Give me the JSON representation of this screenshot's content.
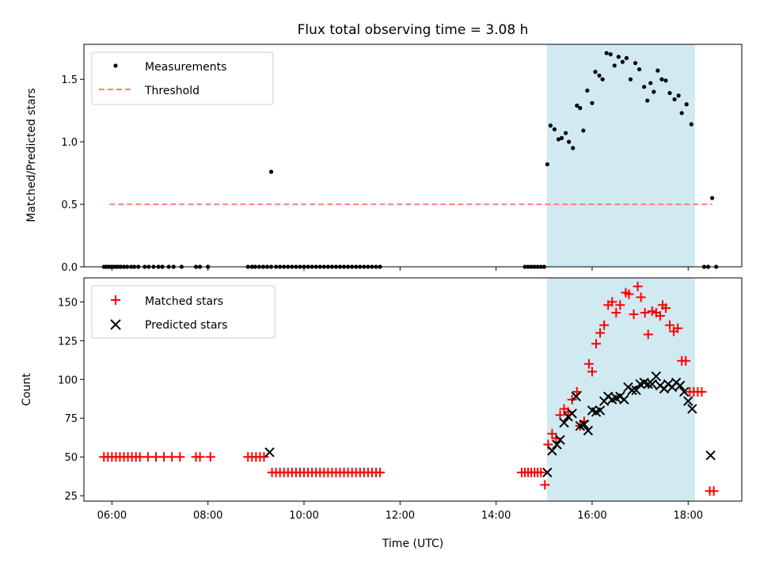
{
  "colors": {
    "measurements": "#000000",
    "threshold": "#ff7f7f",
    "matched": "#ff0000",
    "predicted": "#000000",
    "highlight": "#add8e6"
  },
  "chart_data": [
    {
      "type": "scatter",
      "title": "Flux total observing time = 3.08 h",
      "xlabel": "",
      "ylabel": "Matched/Predicted stars",
      "xlim": [
        "05:25",
        "19:07"
      ],
      "ylim": [
        0,
        1.78
      ],
      "yticks": [
        "0.0",
        "0.5",
        "1.0",
        "1.5"
      ],
      "highlight_span": [
        "15:04",
        "18:08"
      ],
      "legend": {
        "position": "upper-left",
        "entries": [
          "Measurements",
          "Threshold"
        ]
      },
      "threshold": {
        "name": "Threshold",
        "value": 0.5,
        "x_from": "05:57",
        "x_to": "18:30"
      },
      "series": [
        {
          "name": "Measurements",
          "points": [
            [
              "05:50",
              0
            ],
            [
              "05:53",
              0
            ],
            [
              "05:56",
              0
            ],
            [
              "05:59",
              0
            ],
            [
              "06:02",
              0
            ],
            [
              "06:05",
              0
            ],
            [
              "06:08",
              0
            ],
            [
              "06:11",
              0
            ],
            [
              "06:15",
              0
            ],
            [
              "06:19",
              0
            ],
            [
              "06:24",
              0
            ],
            [
              "06:28",
              0
            ],
            [
              "06:33",
              0
            ],
            [
              "06:41",
              0
            ],
            [
              "06:46",
              0
            ],
            [
              "06:52",
              0
            ],
            [
              "06:58",
              0
            ],
            [
              "07:03",
              0
            ],
            [
              "07:11",
              0
            ],
            [
              "07:17",
              0
            ],
            [
              "07:27",
              0
            ],
            [
              "07:45",
              0
            ],
            [
              "07:50",
              0
            ],
            [
              "08:00",
              0
            ],
            [
              "08:50",
              0
            ],
            [
              "08:55",
              0
            ],
            [
              "08:59",
              0
            ],
            [
              "09:04",
              0
            ],
            [
              "09:09",
              0
            ],
            [
              "09:14",
              0
            ],
            [
              "09:19",
              0
            ],
            [
              "09:19",
              0.76
            ],
            [
              "09:25",
              0
            ],
            [
              "09:30",
              0
            ],
            [
              "09:35",
              0
            ],
            [
              "09:40",
              0
            ],
            [
              "09:45",
              0
            ],
            [
              "09:50",
              0
            ],
            [
              "09:55",
              0
            ],
            [
              "10:00",
              0
            ],
            [
              "10:05",
              0
            ],
            [
              "10:10",
              0
            ],
            [
              "10:15",
              0
            ],
            [
              "10:20",
              0
            ],
            [
              "10:25",
              0
            ],
            [
              "10:30",
              0
            ],
            [
              "10:35",
              0
            ],
            [
              "10:40",
              0
            ],
            [
              "10:45",
              0
            ],
            [
              "10:50",
              0
            ],
            [
              "10:55",
              0
            ],
            [
              "11:00",
              0
            ],
            [
              "11:05",
              0
            ],
            [
              "11:10",
              0
            ],
            [
              "11:15",
              0
            ],
            [
              "11:20",
              0
            ],
            [
              "11:25",
              0
            ],
            [
              "11:30",
              0
            ],
            [
              "11:35",
              0
            ],
            [
              "14:36",
              0
            ],
            [
              "14:40",
              0
            ],
            [
              "14:44",
              0
            ],
            [
              "14:48",
              0
            ],
            [
              "14:52",
              0
            ],
            [
              "14:56",
              0
            ],
            [
              "15:00",
              0
            ],
            [
              "15:04",
              0.82
            ],
            [
              "15:08",
              1.13
            ],
            [
              "15:13",
              1.1
            ],
            [
              "15:18",
              1.02
            ],
            [
              "15:22",
              1.03
            ],
            [
              "15:27",
              1.07
            ],
            [
              "15:31",
              1.0
            ],
            [
              "15:36",
              0.95
            ],
            [
              "15:41",
              1.29
            ],
            [
              "15:45",
              1.27
            ],
            [
              "15:49",
              1.09
            ],
            [
              "15:54",
              1.41
            ],
            [
              "16:00",
              1.31
            ],
            [
              "16:04",
              1.56
            ],
            [
              "16:09",
              1.53
            ],
            [
              "16:13",
              1.5
            ],
            [
              "16:18",
              1.71
            ],
            [
              "16:23",
              1.7
            ],
            [
              "16:28",
              1.61
            ],
            [
              "16:33",
              1.68
            ],
            [
              "16:38",
              1.64
            ],
            [
              "16:43",
              1.67
            ],
            [
              "16:48",
              1.5
            ],
            [
              "16:54",
              1.63
            ],
            [
              "16:59",
              1.58
            ],
            [
              "17:05",
              1.44
            ],
            [
              "17:09",
              1.33
            ],
            [
              "17:13",
              1.47
            ],
            [
              "17:17",
              1.4
            ],
            [
              "17:22",
              1.57
            ],
            [
              "17:27",
              1.5
            ],
            [
              "17:32",
              1.49
            ],
            [
              "17:37",
              1.39
            ],
            [
              "17:43",
              1.34
            ],
            [
              "17:48",
              1.37
            ],
            [
              "17:52",
              1.23
            ],
            [
              "17:58",
              1.3
            ],
            [
              "18:04",
              1.14
            ],
            [
              "18:20",
              0
            ],
            [
              "18:25",
              0
            ],
            [
              "18:30",
              0.55
            ],
            [
              "18:35",
              0
            ]
          ]
        }
      ]
    },
    {
      "type": "scatter",
      "title": "",
      "xlabel": "Time (UTC)",
      "ylabel": "Count",
      "xlim": [
        "05:25",
        "19:07"
      ],
      "ylim": [
        21.5,
        165.5
      ],
      "xticks": [
        "06:00",
        "08:00",
        "10:00",
        "12:00",
        "14:00",
        "16:00",
        "18:00"
      ],
      "yticks": [
        "25",
        "50",
        "75",
        "100",
        "125",
        "150"
      ],
      "highlight_span": [
        "15:04",
        "18:08"
      ],
      "legend": {
        "position": "upper-left",
        "entries": [
          "Matched stars",
          "Predicted stars"
        ]
      },
      "series": [
        {
          "name": "Matched stars",
          "points": [
            [
              "05:50",
              50
            ],
            [
              "05:55",
              50
            ],
            [
              "06:00",
              50
            ],
            [
              "06:05",
              50
            ],
            [
              "06:10",
              50
            ],
            [
              "06:15",
              50
            ],
            [
              "06:20",
              50
            ],
            [
              "06:25",
              50
            ],
            [
              "06:30",
              50
            ],
            [
              "06:35",
              50
            ],
            [
              "06:45",
              50
            ],
            [
              "06:55",
              50
            ],
            [
              "07:05",
              50
            ],
            [
              "07:15",
              50
            ],
            [
              "07:25",
              50
            ],
            [
              "07:45",
              50
            ],
            [
              "07:50",
              50
            ],
            [
              "08:03",
              50
            ],
            [
              "08:50",
              50
            ],
            [
              "08:55",
              50
            ],
            [
              "09:00",
              50
            ],
            [
              "09:05",
              50
            ],
            [
              "09:10",
              50
            ],
            [
              "09:20",
              40
            ],
            [
              "09:25",
              40
            ],
            [
              "09:30",
              40
            ],
            [
              "09:35",
              40
            ],
            [
              "09:40",
              40
            ],
            [
              "09:45",
              40
            ],
            [
              "09:50",
              40
            ],
            [
              "09:55",
              40
            ],
            [
              "10:00",
              40
            ],
            [
              "10:05",
              40
            ],
            [
              "10:10",
              40
            ],
            [
              "10:15",
              40
            ],
            [
              "10:20",
              40
            ],
            [
              "10:25",
              40
            ],
            [
              "10:30",
              40
            ],
            [
              "10:35",
              40
            ],
            [
              "10:40",
              40
            ],
            [
              "10:45",
              40
            ],
            [
              "10:50",
              40
            ],
            [
              "10:55",
              40
            ],
            [
              "11:00",
              40
            ],
            [
              "11:05",
              40
            ],
            [
              "11:10",
              40
            ],
            [
              "11:15",
              40
            ],
            [
              "11:20",
              40
            ],
            [
              "11:25",
              40
            ],
            [
              "11:30",
              40
            ],
            [
              "11:35",
              40
            ],
            [
              "14:32",
              40
            ],
            [
              "14:36",
              40
            ],
            [
              "14:40",
              40
            ],
            [
              "14:44",
              40
            ],
            [
              "14:48",
              40
            ],
            [
              "14:52",
              40
            ],
            [
              "14:56",
              40
            ],
            [
              "15:01",
              32
            ],
            [
              "15:05",
              58
            ],
            [
              "15:10",
              65
            ],
            [
              "15:15",
              62
            ],
            [
              "15:20",
              77
            ],
            [
              "15:25",
              81
            ],
            [
              "15:30",
              79
            ],
            [
              "15:35",
              87
            ],
            [
              "15:41",
              92
            ],
            [
              "15:45",
              70
            ],
            [
              "15:50",
              73
            ],
            [
              "15:56",
              110
            ],
            [
              "16:00",
              105
            ],
            [
              "16:05",
              123
            ],
            [
              "16:10",
              130
            ],
            [
              "16:15",
              135
            ],
            [
              "16:20",
              148
            ],
            [
              "16:25",
              150
            ],
            [
              "16:30",
              143
            ],
            [
              "16:35",
              148
            ],
            [
              "16:42",
              156
            ],
            [
              "16:46",
              155
            ],
            [
              "16:52",
              142
            ],
            [
              "16:57",
              160
            ],
            [
              "17:01",
              153
            ],
            [
              "17:06",
              143
            ],
            [
              "17:10",
              129
            ],
            [
              "17:15",
              144
            ],
            [
              "17:20",
              143
            ],
            [
              "17:25",
              141
            ],
            [
              "17:28",
              148
            ],
            [
              "17:32",
              146
            ],
            [
              "17:37",
              135
            ],
            [
              "17:42",
              131
            ],
            [
              "17:47",
              133
            ],
            [
              "17:52",
              112
            ],
            [
              "17:57",
              112
            ],
            [
              "18:02",
              92
            ],
            [
              "18:07",
              92
            ],
            [
              "18:12",
              92
            ],
            [
              "18:17",
              92
            ],
            [
              "18:27",
              28
            ],
            [
              "18:32",
              28
            ]
          ]
        },
        {
          "name": "Predicted stars",
          "points": [
            [
              "09:17",
              53
            ],
            [
              "15:04",
              40
            ],
            [
              "15:10",
              54
            ],
            [
              "15:16",
              58
            ],
            [
              "15:20",
              61
            ],
            [
              "15:25",
              72
            ],
            [
              "15:30",
              76
            ],
            [
              "15:35",
              78
            ],
            [
              "15:40",
              89
            ],
            [
              "15:45",
              70
            ],
            [
              "15:50",
              71
            ],
            [
              "15:55",
              67
            ],
            [
              "16:00",
              80
            ],
            [
              "16:05",
              79
            ],
            [
              "16:10",
              80
            ],
            [
              "16:15",
              86
            ],
            [
              "16:20",
              89
            ],
            [
              "16:25",
              87
            ],
            [
              "16:30",
              88
            ],
            [
              "16:35",
              89
            ],
            [
              "16:40",
              87
            ],
            [
              "16:45",
              95
            ],
            [
              "16:50",
              93
            ],
            [
              "16:55",
              93
            ],
            [
              "17:00",
              97
            ],
            [
              "17:05",
              98
            ],
            [
              "17:10",
              97
            ],
            [
              "17:15",
              97
            ],
            [
              "17:20",
              102
            ],
            [
              "17:25",
              96
            ],
            [
              "17:30",
              94
            ],
            [
              "17:35",
              97
            ],
            [
              "17:40",
              95
            ],
            [
              "17:45",
              98
            ],
            [
              "17:50",
              96
            ],
            [
              "17:55",
              92
            ],
            [
              "18:00",
              86
            ],
            [
              "18:05",
              81
            ],
            [
              "18:28",
              51
            ]
          ]
        }
      ]
    }
  ]
}
